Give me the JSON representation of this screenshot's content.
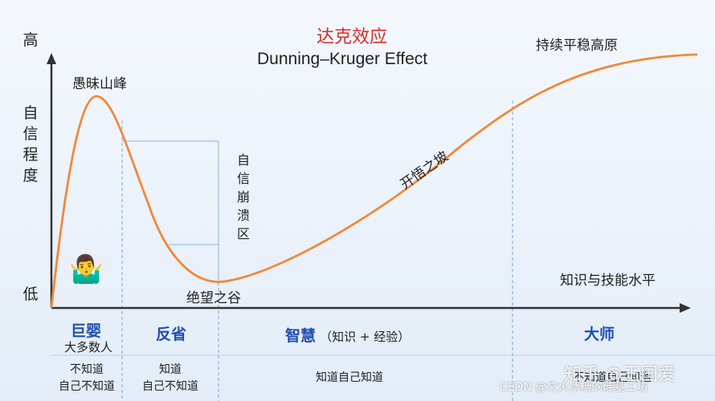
{
  "title": {
    "cn": "达克效应",
    "en": "Dunning–Kruger Effect"
  },
  "y_axis": {
    "high": "高",
    "low": "低",
    "label_chars": [
      "自",
      "信",
      "程",
      "度"
    ]
  },
  "curve_labels": {
    "peak": "愚昧山峰",
    "valley": "绝望之谷",
    "slope": "开悟之坡",
    "plateau": "持续平稳高原",
    "collapse_chars": [
      "自",
      "信",
      "崩",
      "溃",
      "区"
    ]
  },
  "x_axis_label": "知识与技能水平",
  "phases": [
    {
      "name": "巨婴",
      "sub": "大多数人",
      "desc_lines": [
        "不知道",
        "自己不知道"
      ]
    },
    {
      "name": "反省",
      "sub": "",
      "desc_lines": [
        "知道",
        "自己不知道"
      ]
    },
    {
      "name": "智慧",
      "sub": "（知识 + 经验）",
      "desc_lines": [
        "知道自己知道"
      ]
    },
    {
      "name": "大师",
      "sub": "",
      "desc_lines": [
        "不知道自己知道"
      ]
    }
  ],
  "emoji": {
    "shrug": "🤷‍♂️"
  },
  "watermarks": {
    "zhihu": "知乎 @王国爱",
    "csdn": "CSDN @文火冰糖的硅基工坊"
  },
  "colors": {
    "curve": "#ef8a3c",
    "phase_text": "#1f4fb0",
    "title_cn": "#d92b2b",
    "guide": "#8fb2dc"
  }
}
